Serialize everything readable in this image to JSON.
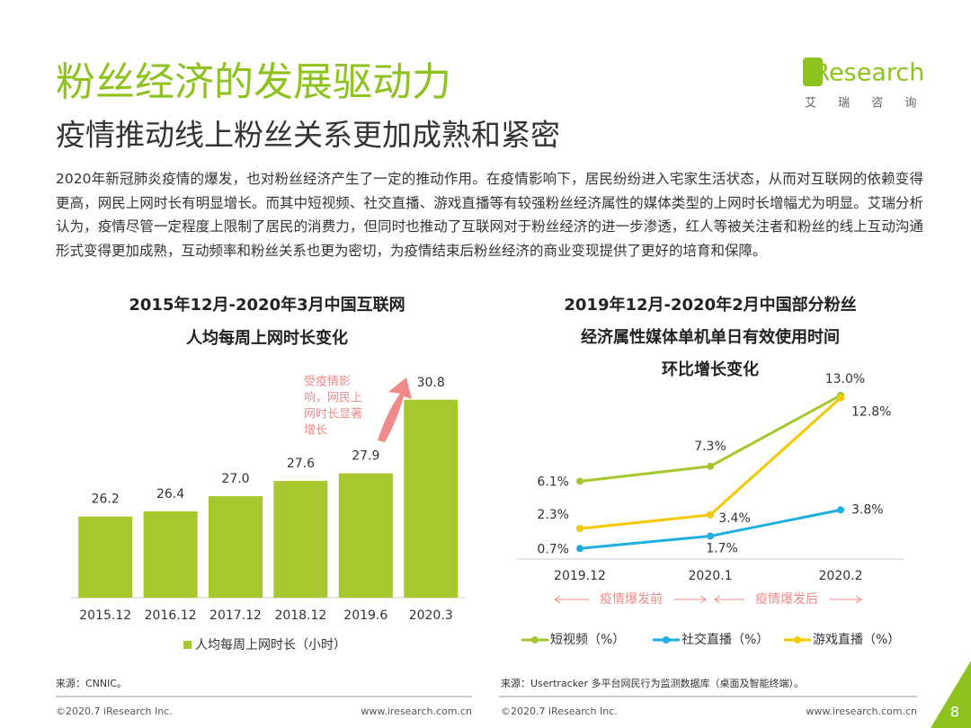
{
  "header": {
    "title": "粉丝经济的发展驱动力",
    "subtitle": "疫情推动线上粉丝关系更加成熟和紧密"
  },
  "logo": {
    "name": "iResearch",
    "name_cn": "艾 瑞 咨 询"
  },
  "paragraph": "2020年新冠肺炎疫情的爆发，也对粉丝经济产生了一定的推动作用。在疫情影响下，居民纷纷进入宅家生活状态，从而对互联网的依赖变得更高，网民上网时长有明显增长。而其中短视频、社交直播、游戏直播等有较强粉丝经济属性的媒体类型的上网时长增幅尤为明显。艾瑞分析认为，疫情尽管一定程度上限制了居民的消费力，但同时也推动了互联网对于粉丝经济的进一步渗透，红人等被关注者和粉丝的线上互动沟通形式变得更加成熟，互动频率和粉丝关系也更为密切，为疫情结束后粉丝经济的商业变现提供了更好的培育和保障。",
  "chart_data": [
    {
      "type": "bar",
      "title": [
        "2015年12月-2020年3月中国互联网",
        "人均每周上网时长变化"
      ],
      "categories": [
        "2015.12",
        "2016.12",
        "2017.12",
        "2018.12",
        "2019.6",
        "2020.3"
      ],
      "values": [
        26.2,
        26.4,
        27.0,
        27.6,
        27.9,
        30.8
      ],
      "value_labels": [
        "26.2",
        "26.4",
        "27.0",
        "27.6",
        "27.9",
        "30.8"
      ],
      "color": "#a6c82e",
      "ylim": [
        23,
        31.5
      ],
      "legend": "人均每周上网时长（小时）",
      "annotation": [
        "受疫情影",
        "响，网民上",
        "网时长显著",
        "增长"
      ]
    },
    {
      "type": "line",
      "title": [
        "2019年12月-2020年2月中国部分粉丝",
        "经济属性媒体单机单日有效使用时间",
        "环比增长变化"
      ],
      "categories": [
        "2019.12",
        "2020.1",
        "2020.2"
      ],
      "series": [
        {
          "name": "短视频（%）",
          "color": "#a6c82e",
          "values": [
            6.1,
            7.3,
            13.0
          ],
          "value_labels": [
            "6.1%",
            "7.3%",
            "13.0%"
          ]
        },
        {
          "name": "社交直播（%）",
          "color": "#1eaee0",
          "values": [
            0.7,
            1.7,
            3.8
          ],
          "value_labels": [
            "0.7%",
            "1.7%",
            "3.8%"
          ]
        },
        {
          "name": "游戏直播（%）",
          "color": "#f5c800",
          "values": [
            2.3,
            3.4,
            12.8
          ],
          "value_labels": [
            "2.3%",
            "3.4%",
            "12.8%"
          ]
        }
      ],
      "ylim": [
        0,
        14
      ],
      "annotations": [
        "疫情爆发前",
        "疫情爆发后"
      ]
    }
  ],
  "footer": {
    "left_source": "来源：CNNIC。",
    "right_source": "来源：Usertracker 多平台网民行为监测数据库（桌面及智能终端）。",
    "left_copyright": "©2020.7 iResearch Inc.",
    "left_url": "www.iresearch.com.cn",
    "right_copyright": "©2020.7 iResearch Inc.",
    "right_url": "www.iresearch.com.cn",
    "page": 8
  }
}
